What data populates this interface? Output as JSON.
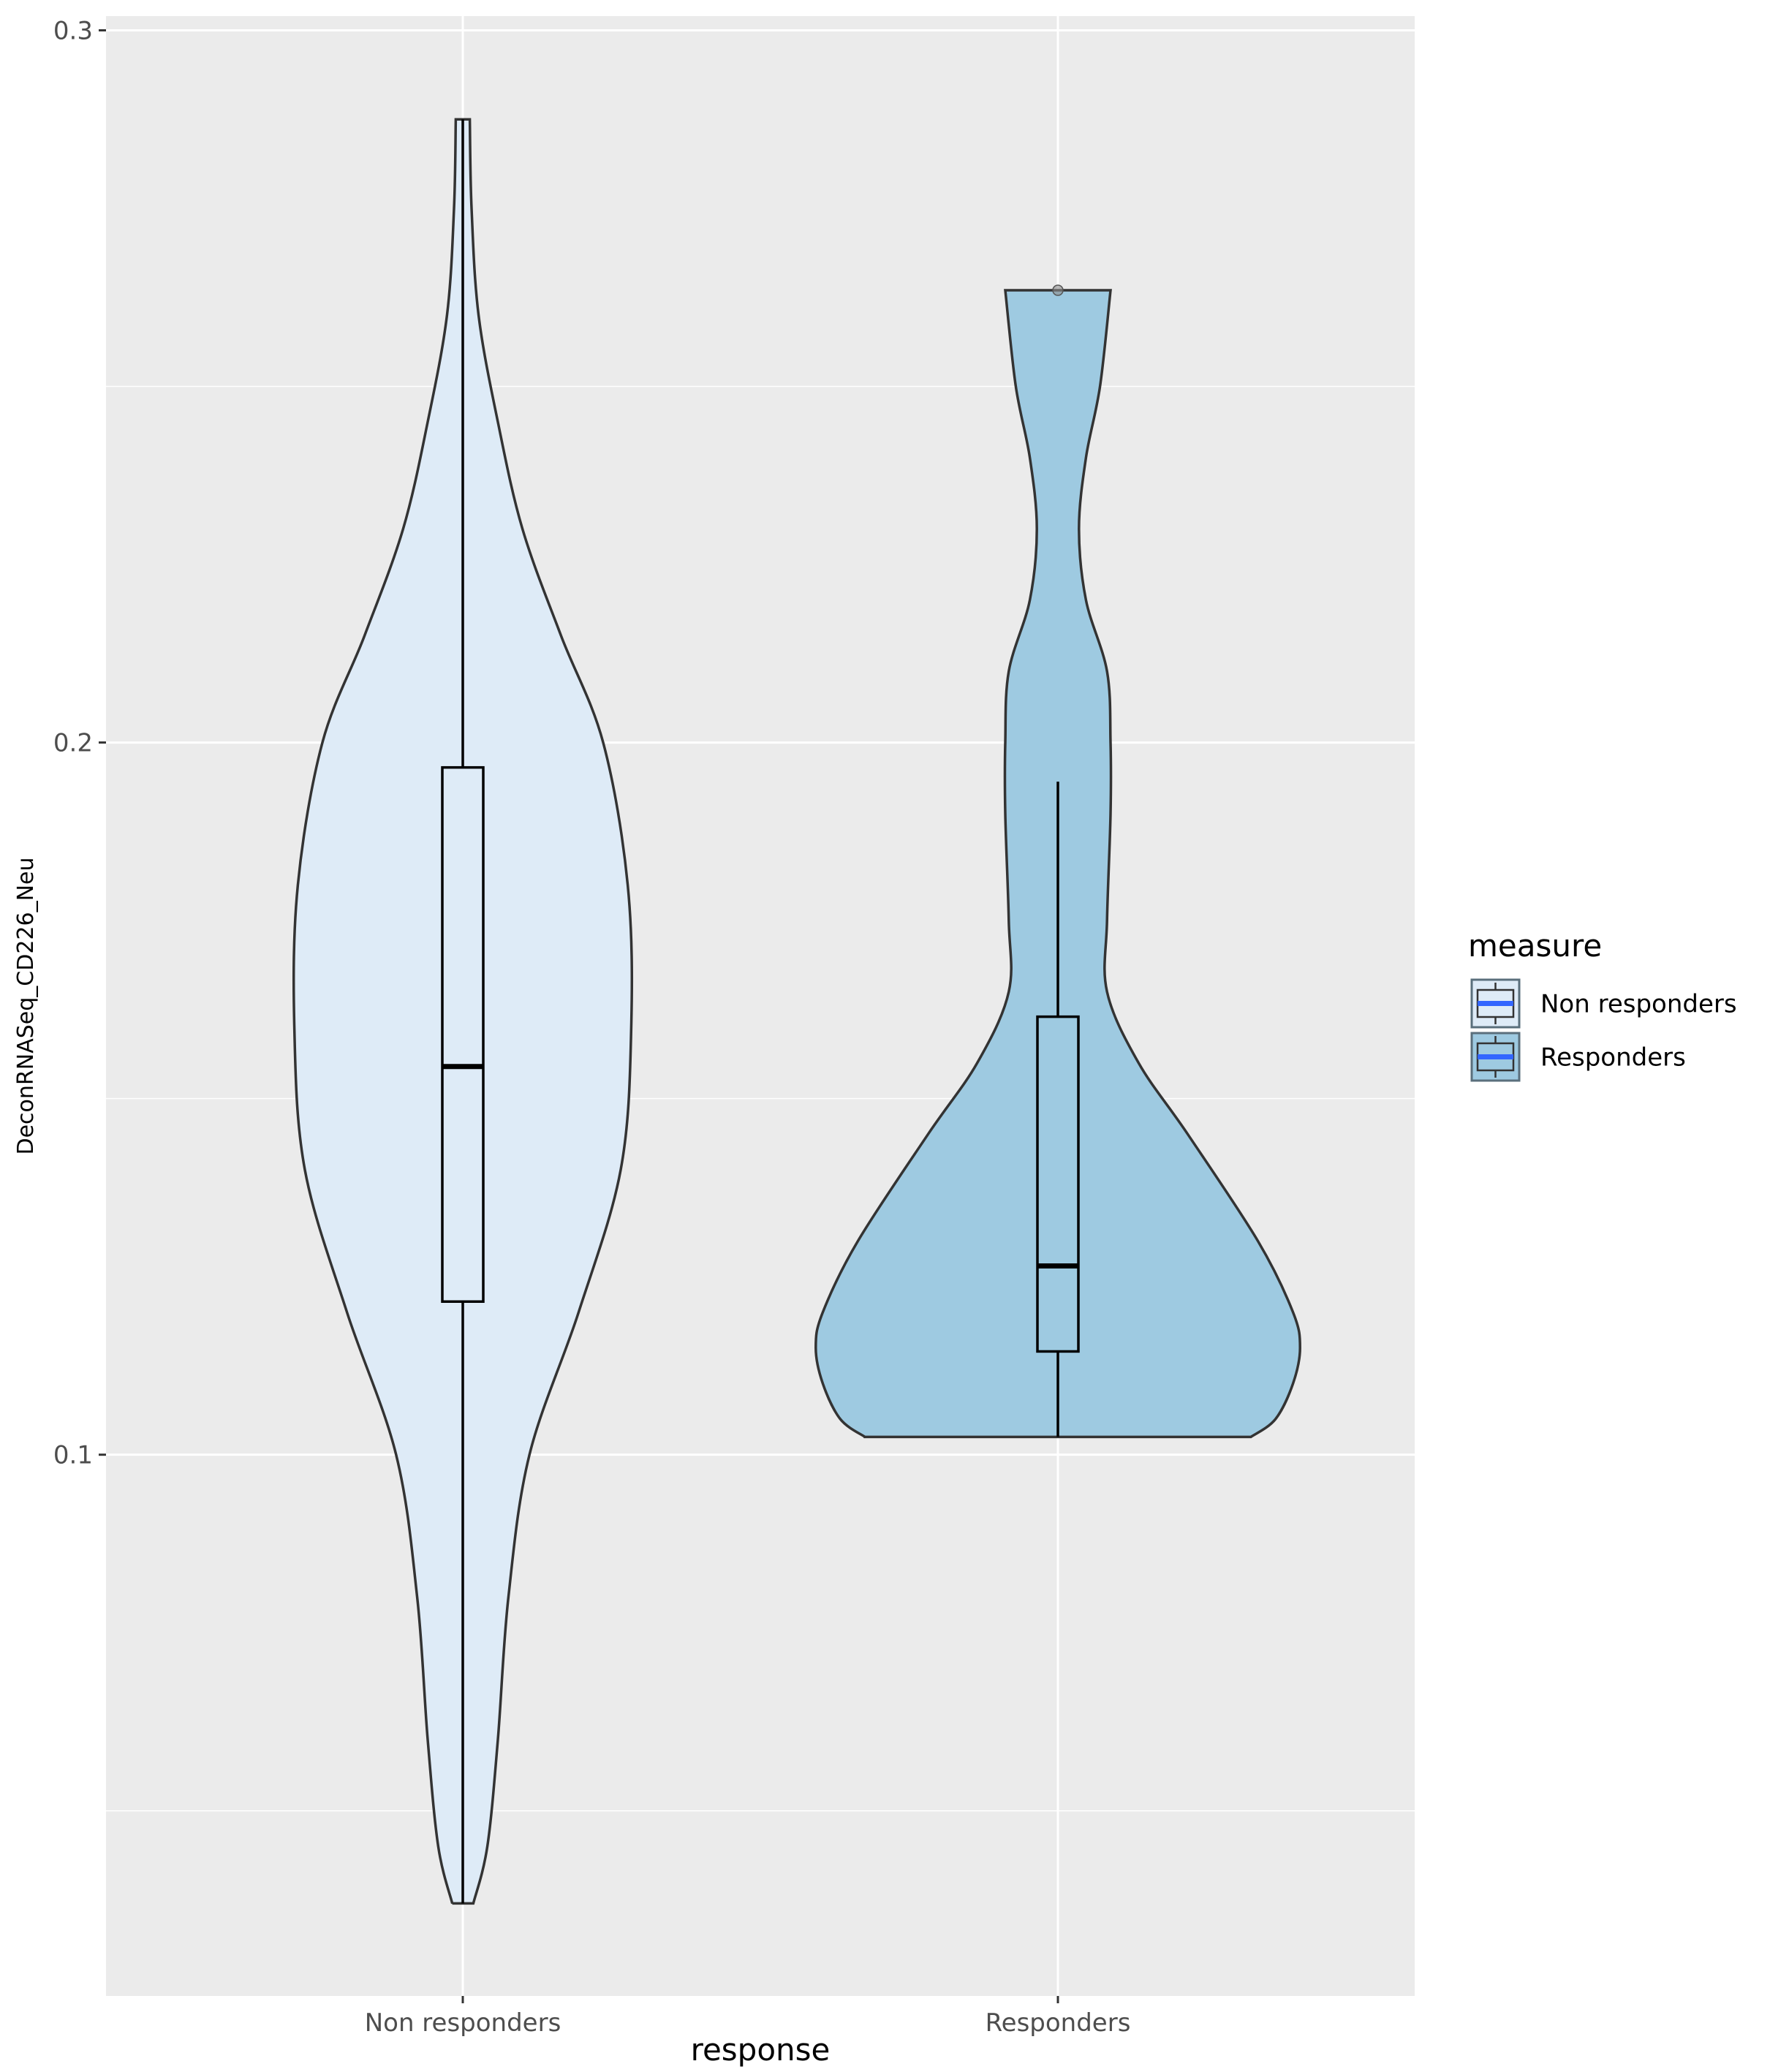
{
  "chart_data": {
    "type": "violin",
    "xlabel": "response",
    "ylabel": "DeconRNASeq_CD226_Neu",
    "categories": [
      "Non responders",
      "Responders"
    ],
    "ylim": [
      0.024,
      0.302
    ],
    "y_ticks": [
      0.1,
      0.2,
      0.3
    ],
    "y_tick_labels": [
      "0.1",
      "0.2",
      "0.3"
    ],
    "y_minor_ticks": [
      0.05,
      0.15,
      0.25
    ],
    "grid": true,
    "legend": {
      "title": "measure",
      "placement": "right",
      "entries": [
        "Non responders",
        "Responders"
      ]
    },
    "colors": {
      "panel_bg": "#ebebeb",
      "grid": "#ffffff",
      "outline": "#333333",
      "Non responders": "#deebf7",
      "Responders": "#9ecae1",
      "legend_median": "#3366ff"
    },
    "series": [
      {
        "name": "Non responders",
        "box": {
          "min": 0.037,
          "q1": 0.1215,
          "median": 0.1545,
          "q3": 0.1965,
          "max": 0.2875
        },
        "outliers": [],
        "violin_profile": [
          [
            0.037,
            0.03
          ],
          [
            0.045,
            0.07
          ],
          [
            0.06,
            0.1
          ],
          [
            0.08,
            0.13
          ],
          [
            0.1,
            0.19
          ],
          [
            0.12,
            0.33
          ],
          [
            0.14,
            0.45
          ],
          [
            0.16,
            0.48
          ],
          [
            0.18,
            0.47
          ],
          [
            0.2,
            0.4
          ],
          [
            0.215,
            0.28
          ],
          [
            0.23,
            0.17
          ],
          [
            0.245,
            0.1
          ],
          [
            0.26,
            0.045
          ],
          [
            0.275,
            0.025
          ],
          [
            0.2875,
            0.02
          ]
        ]
      },
      {
        "name": "Responders",
        "box": {
          "min": 0.1025,
          "q1": 0.1145,
          "median": 0.1265,
          "q3": 0.1615,
          "max": 0.1945
        },
        "outliers": [
          0.2635
        ],
        "violin_profile": [
          [
            0.1025,
            0.55
          ],
          [
            0.105,
            0.62
          ],
          [
            0.11,
            0.67
          ],
          [
            0.115,
            0.69
          ],
          [
            0.12,
            0.67
          ],
          [
            0.13,
            0.57
          ],
          [
            0.145,
            0.37
          ],
          [
            0.155,
            0.23
          ],
          [
            0.165,
            0.14
          ],
          [
            0.175,
            0.14
          ],
          [
            0.19,
            0.15
          ],
          [
            0.2,
            0.15
          ],
          [
            0.21,
            0.14
          ],
          [
            0.22,
            0.08
          ],
          [
            0.23,
            0.06
          ],
          [
            0.24,
            0.08
          ],
          [
            0.25,
            0.12
          ],
          [
            0.2635,
            0.15
          ]
        ]
      }
    ]
  }
}
